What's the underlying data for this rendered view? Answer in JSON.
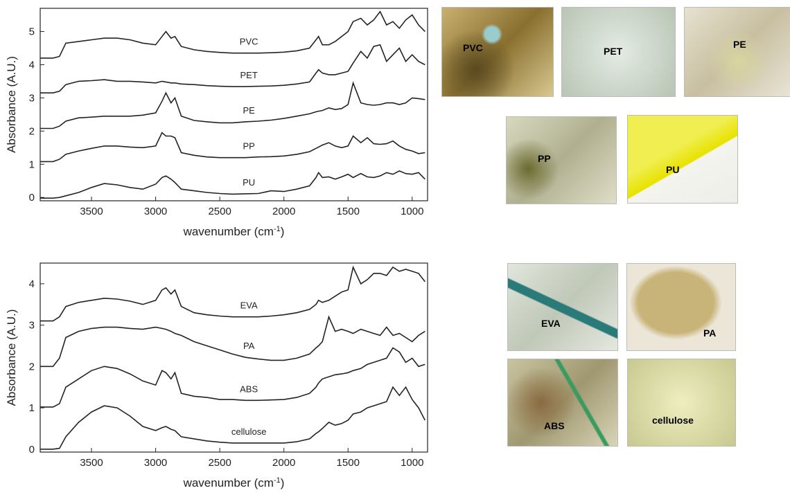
{
  "chart_data": [
    {
      "type": "line",
      "y_label": "Absorbance (A.U.)",
      "x_label_parts": [
        "wavenumber (cm",
        "-1",
        ")"
      ],
      "xlim": [
        3900,
        880
      ],
      "ylim": [
        -0.1,
        5.7
      ],
      "xticks": [
        3500,
        3000,
        2500,
        2000,
        1500,
        1000
      ],
      "yticks": [
        0,
        1,
        2,
        3,
        4,
        5
      ],
      "color": "#222222",
      "x": [
        3900,
        3800,
        3750,
        3700,
        3600,
        3500,
        3400,
        3300,
        3200,
        3100,
        3000,
        2950,
        2920,
        2880,
        2850,
        2800,
        2700,
        2600,
        2500,
        2400,
        2300,
        2200,
        2100,
        2000,
        1900,
        1800,
        1750,
        1730,
        1700,
        1650,
        1600,
        1550,
        1500,
        1460,
        1400,
        1350,
        1300,
        1250,
        1200,
        1150,
        1100,
        1050,
        1000,
        950,
        900
      ],
      "series": [
        {
          "name": "PVC",
          "values": [
            4.2,
            4.2,
            4.25,
            4.65,
            4.7,
            4.75,
            4.8,
            4.8,
            4.75,
            4.65,
            4.6,
            4.85,
            5.0,
            4.8,
            4.85,
            4.55,
            4.45,
            4.4,
            4.37,
            4.35,
            4.35,
            4.35,
            4.36,
            4.38,
            4.42,
            4.5,
            4.75,
            4.85,
            4.6,
            4.6,
            4.7,
            4.85,
            5.0,
            5.3,
            5.4,
            5.2,
            5.35,
            5.6,
            5.2,
            5.3,
            5.1,
            5.35,
            5.5,
            5.2,
            5.0
          ]
        },
        {
          "name": "PET",
          "values": [
            3.15,
            3.15,
            3.2,
            3.4,
            3.5,
            3.52,
            3.55,
            3.5,
            3.5,
            3.48,
            3.45,
            3.5,
            3.48,
            3.45,
            3.45,
            3.42,
            3.4,
            3.37,
            3.35,
            3.34,
            3.34,
            3.35,
            3.36,
            3.38,
            3.42,
            3.48,
            3.75,
            3.85,
            3.75,
            3.7,
            3.7,
            3.75,
            3.8,
            4.05,
            4.4,
            4.2,
            4.55,
            4.6,
            4.1,
            4.3,
            4.5,
            4.1,
            4.3,
            4.1,
            4.0
          ]
        },
        {
          "name": "PE",
          "values": [
            2.08,
            2.08,
            2.15,
            2.3,
            2.4,
            2.42,
            2.45,
            2.45,
            2.45,
            2.48,
            2.55,
            2.9,
            3.15,
            2.85,
            3.0,
            2.45,
            2.32,
            2.28,
            2.25,
            2.25,
            2.28,
            2.3,
            2.33,
            2.38,
            2.45,
            2.52,
            2.58,
            2.6,
            2.62,
            2.7,
            2.65,
            2.68,
            2.8,
            3.45,
            2.85,
            2.8,
            2.78,
            2.8,
            2.85,
            2.85,
            2.8,
            2.85,
            3.0,
            2.98,
            2.95
          ]
        },
        {
          "name": "PP",
          "values": [
            1.08,
            1.08,
            1.15,
            1.3,
            1.4,
            1.48,
            1.55,
            1.55,
            1.52,
            1.5,
            1.55,
            1.95,
            1.85,
            1.85,
            1.8,
            1.35,
            1.27,
            1.22,
            1.2,
            1.2,
            1.2,
            1.22,
            1.23,
            1.25,
            1.3,
            1.38,
            1.48,
            1.52,
            1.58,
            1.65,
            1.55,
            1.5,
            1.55,
            1.85,
            1.65,
            1.8,
            1.62,
            1.6,
            1.62,
            1.7,
            1.55,
            1.45,
            1.4,
            1.32,
            1.35
          ]
        },
        {
          "name": "PU",
          "values": [
            -0.02,
            -0.02,
            0,
            0.05,
            0.15,
            0.3,
            0.42,
            0.38,
            0.3,
            0.25,
            0.4,
            0.6,
            0.65,
            0.55,
            0.45,
            0.25,
            0.2,
            0.15,
            0.12,
            0.1,
            0.11,
            0.12,
            0.2,
            0.18,
            0.25,
            0.35,
            0.6,
            0.75,
            0.6,
            0.62,
            0.55,
            0.62,
            0.7,
            0.6,
            0.72,
            0.62,
            0.6,
            0.65,
            0.75,
            0.7,
            0.8,
            0.72,
            0.7,
            0.75,
            0.55
          ]
        }
      ]
    },
    {
      "type": "line",
      "y_label": "Absorbance (A.U.)",
      "x_label_parts": [
        "wavenumber (cm",
        "-1",
        ")"
      ],
      "xlim": [
        3900,
        880
      ],
      "ylim": [
        -0.07,
        4.5
      ],
      "xticks": [
        3500,
        3000,
        2500,
        2000,
        1500,
        1000
      ],
      "yticks": [
        0,
        1,
        2,
        3,
        4
      ],
      "color": "#222222",
      "x": [
        3900,
        3800,
        3750,
        3700,
        3600,
        3500,
        3400,
        3300,
        3200,
        3100,
        3000,
        2950,
        2920,
        2880,
        2850,
        2800,
        2700,
        2600,
        2500,
        2400,
        2300,
        2200,
        2100,
        2000,
        1900,
        1800,
        1750,
        1730,
        1700,
        1650,
        1600,
        1550,
        1500,
        1460,
        1400,
        1350,
        1300,
        1250,
        1200,
        1150,
        1100,
        1050,
        1000,
        950,
        900
      ],
      "series": [
        {
          "name": "EVA",
          "values": [
            3.1,
            3.1,
            3.2,
            3.45,
            3.55,
            3.6,
            3.65,
            3.63,
            3.58,
            3.5,
            3.6,
            3.85,
            3.9,
            3.75,
            3.85,
            3.45,
            3.3,
            3.25,
            3.22,
            3.2,
            3.2,
            3.2,
            3.22,
            3.25,
            3.3,
            3.38,
            3.5,
            3.6,
            3.55,
            3.6,
            3.7,
            3.8,
            3.85,
            4.4,
            4.0,
            4.1,
            4.25,
            4.25,
            4.2,
            4.4,
            4.3,
            4.35,
            4.3,
            4.25,
            4.05
          ]
        },
        {
          "name": "PA",
          "values": [
            2.0,
            2.0,
            2.2,
            2.7,
            2.85,
            2.92,
            2.95,
            2.95,
            2.92,
            2.9,
            2.95,
            2.92,
            2.9,
            2.85,
            2.8,
            2.75,
            2.6,
            2.5,
            2.4,
            2.3,
            2.22,
            2.18,
            2.15,
            2.15,
            2.2,
            2.3,
            2.45,
            2.5,
            2.6,
            3.2,
            2.85,
            2.9,
            2.85,
            2.8,
            2.9,
            2.85,
            2.8,
            2.75,
            2.95,
            2.75,
            2.8,
            2.7,
            2.6,
            2.75,
            2.85
          ]
        },
        {
          "name": "ABS",
          "values": [
            1.02,
            1.02,
            1.1,
            1.5,
            1.7,
            1.9,
            2.0,
            1.95,
            1.82,
            1.65,
            1.55,
            1.9,
            1.85,
            1.7,
            1.85,
            1.35,
            1.28,
            1.25,
            1.2,
            1.2,
            1.18,
            1.18,
            1.19,
            1.2,
            1.25,
            1.35,
            1.5,
            1.6,
            1.7,
            1.75,
            1.8,
            1.82,
            1.85,
            1.9,
            1.95,
            2.05,
            2.1,
            2.15,
            2.2,
            2.45,
            2.35,
            2.1,
            2.2,
            2.0,
            2.05
          ]
        },
        {
          "name": "cellulose",
          "values": [
            0,
            0,
            0.02,
            0.3,
            0.65,
            0.9,
            1.05,
            1.0,
            0.8,
            0.55,
            0.45,
            0.52,
            0.55,
            0.48,
            0.45,
            0.3,
            0.25,
            0.2,
            0.17,
            0.15,
            0.15,
            0.15,
            0.15,
            0.15,
            0.18,
            0.25,
            0.38,
            0.42,
            0.5,
            0.65,
            0.58,
            0.62,
            0.7,
            0.85,
            0.9,
            1.0,
            1.05,
            1.1,
            1.15,
            1.5,
            1.3,
            1.5,
            1.2,
            1.0,
            0.7
          ]
        }
      ]
    }
  ],
  "photos": [
    {
      "label": "PVC"
    },
    {
      "label": "PET"
    },
    {
      "label": "PE"
    },
    {
      "label": "PP"
    },
    {
      "label": "PU"
    },
    {
      "label": "EVA"
    },
    {
      "label": "PA"
    },
    {
      "label": "ABS"
    },
    {
      "label": "cellulose"
    }
  ]
}
